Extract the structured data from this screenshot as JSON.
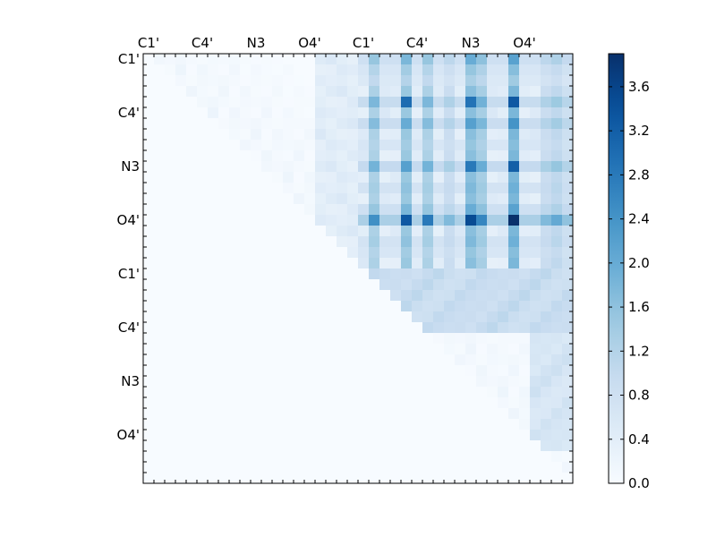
{
  "chart_data": {
    "type": "heatmap",
    "n": 40,
    "colormap": "Blues",
    "vmin": 0.0,
    "vmax": 3.9,
    "triangle": "upper",
    "tick_labels": [
      "C1'",
      "C4'",
      "N3",
      "O4'",
      "C1'",
      "C4'",
      "N3",
      "O4'"
    ],
    "tick_positions": [
      0,
      5,
      10,
      15,
      20,
      25,
      30,
      35
    ],
    "colorbar": {
      "ticks": [
        0.0,
        0.4,
        0.8,
        1.2,
        1.6,
        2.0,
        2.4,
        2.8,
        3.2,
        3.6
      ],
      "tick_labels": [
        "0.0",
        "0.4",
        "0.8",
        "1.2",
        "1.6",
        "2.0",
        "2.4",
        "2.8",
        "3.2",
        "3.6"
      ]
    },
    "base_values": [
      0.05,
      0.18,
      0.12,
      0.08,
      0.1,
      0.04,
      0.15,
      0.22,
      0.09,
      0.03
    ],
    "highlight_columns": {
      "21": 1.7,
      "24": 2.0,
      "26": 1.7,
      "28": 1.2,
      "30": 2.2,
      "31": 1.8,
      "34": 2.4,
      "37": 1.2,
      "38": 1.4,
      "39": 1.1
    },
    "highlight_rows_scale": {
      "0": 0.9,
      "1": 0.7,
      "2": 0.6,
      "4": 1.05,
      "6": 1.0,
      "8": 0.7,
      "10": 1.1,
      "12": 0.8,
      "14": 0.9,
      "15": 1.45,
      "17": 0.8,
      "18": 0.7
    },
    "peak_cells": [
      {
        "row": 15,
        "col": 34,
        "value": 3.9
      },
      {
        "row": 15,
        "col": 30,
        "value": 3.5
      },
      {
        "row": 15,
        "col": 24,
        "value": 3.3
      },
      {
        "row": 4,
        "col": 24,
        "value": 3.0
      },
      {
        "row": 4,
        "col": 34,
        "value": 3.3
      },
      {
        "row": 10,
        "col": 34,
        "value": 3.2
      },
      {
        "row": 10,
        "col": 30,
        "value": 2.8
      },
      {
        "row": 4,
        "col": 30,
        "value": 2.9
      },
      {
        "row": 15,
        "col": 26,
        "value": 2.8
      }
    ],
    "bands": [
      {
        "rows": [
          20,
          25
        ],
        "cols": [
          20,
          39
        ],
        "value": 0.75
      },
      {
        "rows": [
          21,
          24
        ],
        "cols": [
          36,
          39
        ],
        "value": 0.45
      },
      {
        "rows": [
          24,
          36
        ],
        "cols": [
          36,
          39
        ],
        "value": 0.5
      }
    ]
  }
}
